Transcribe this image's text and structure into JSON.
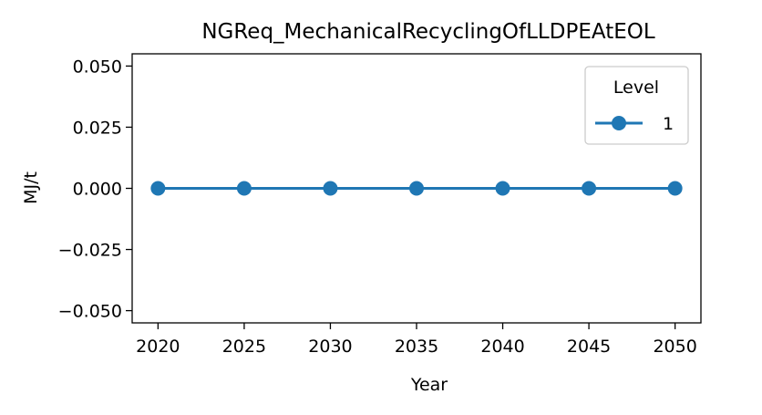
{
  "chart_data": {
    "type": "line",
    "title": "NGReq_MechanicalRecyclingOfLLDPEAtEOL",
    "xlabel": "Year",
    "ylabel": "MJ/t",
    "x": [
      2020,
      2025,
      2030,
      2035,
      2040,
      2045,
      2050
    ],
    "xticks": [
      "2020",
      "2025",
      "2030",
      "2035",
      "2040",
      "2045",
      "2050"
    ],
    "yticks": [
      "−0.050",
      "−0.025",
      "0.000",
      "0.025",
      "0.050"
    ],
    "ytick_values": [
      -0.05,
      -0.025,
      0.0,
      0.025,
      0.05
    ],
    "xlim": [
      2018.5,
      2051.5
    ],
    "ylim": [
      -0.055,
      0.055
    ],
    "series": [
      {
        "name": "1",
        "values": [
          0,
          0,
          0,
          0,
          0,
          0,
          0
        ],
        "color": "#1f77b4",
        "marker": "circle"
      }
    ],
    "legend": {
      "title": "Level",
      "placement": "top-right"
    },
    "grid": false
  }
}
